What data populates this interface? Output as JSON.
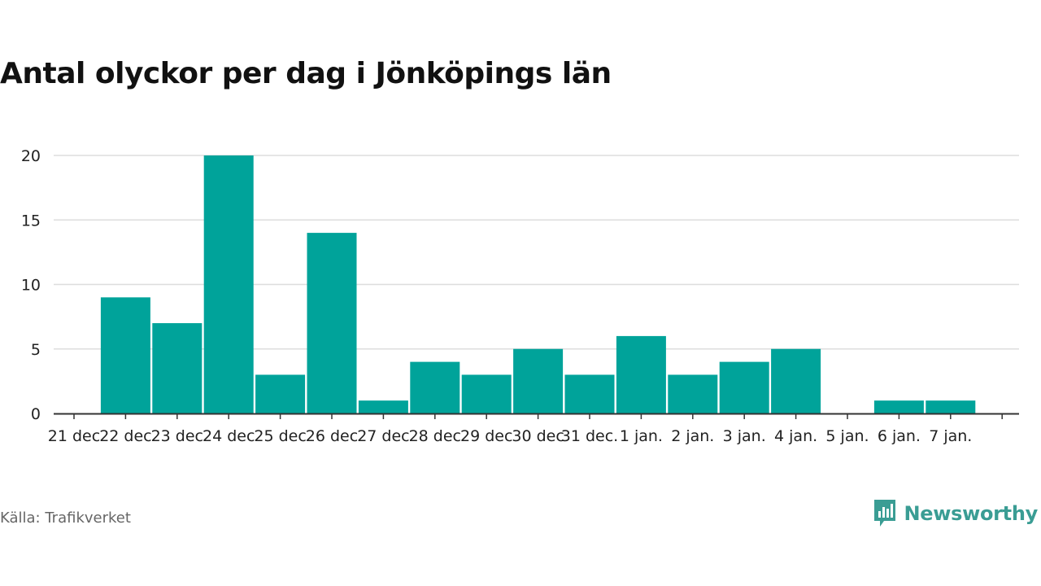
{
  "title": "Antal olyckor per dag i Jönköpings län",
  "source": "Källa: Trafikverket",
  "brand": {
    "name": "Newsworthy",
    "icon": "newsworthy-logo-icon"
  },
  "colors": {
    "bar": "#00a39a",
    "grid": "#dddddd",
    "axis": "#333333",
    "brand": "#3a9d94"
  },
  "chart_data": {
    "type": "bar",
    "title": "Antal olyckor per dag i Jönköpings län",
    "xlabel": "",
    "ylabel": "",
    "ylim": [
      0,
      20
    ],
    "yticks": [
      0,
      5,
      10,
      15,
      20
    ],
    "grid": true,
    "legend": "none",
    "categories": [
      "21 dec",
      "22 dec",
      "23 dec",
      "24 dec",
      "25 dec",
      "26 dec",
      "27 dec",
      "28 dec",
      "29 dec",
      "30 dec",
      "31 dec.",
      "1 jan.",
      "2 jan.",
      "3 jan.",
      "4 jan.",
      "5 jan.",
      "6 jan.",
      "7 jan."
    ],
    "values": [
      0,
      9,
      7,
      20,
      3,
      14,
      1,
      4,
      3,
      5,
      3,
      6,
      3,
      4,
      5,
      0,
      1,
      1
    ]
  }
}
